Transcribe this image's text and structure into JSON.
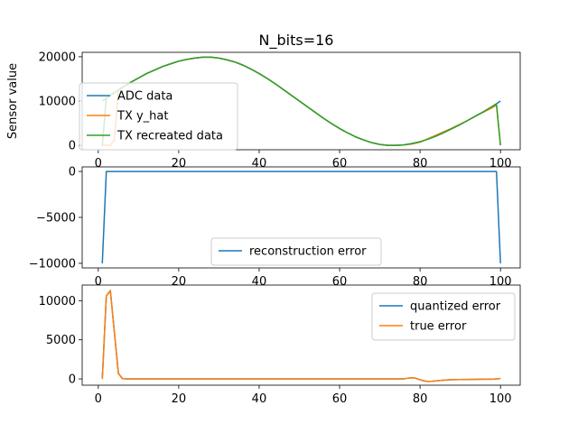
{
  "figure": {
    "title": "N_bits=16"
  },
  "chart_data": [
    {
      "type": "line",
      "title": "N_bits=16",
      "xlabel": "",
      "ylabel": "Sensor value",
      "xlim": [
        -4.0,
        104.9
      ],
      "ylim": [
        -1000,
        21000
      ],
      "xticks": [
        0,
        20,
        40,
        60,
        80,
        100
      ],
      "yticks": [
        0,
        10000,
        20000
      ],
      "ytick_labels": [
        "0",
        "10000",
        "20000"
      ],
      "legend_loc": "center-left",
      "grid": false,
      "series": [
        {
          "name": "ADC data",
          "color": "#1f77b4",
          "x": [
            1,
            2,
            3,
            4,
            5,
            6,
            7,
            8,
            9,
            10,
            12,
            14,
            16,
            18,
            20,
            22,
            24,
            26,
            28,
            30,
            32,
            34,
            36,
            38,
            40,
            42,
            44,
            46,
            48,
            50,
            52,
            54,
            56,
            58,
            60,
            62,
            64,
            66,
            68,
            70,
            72,
            74,
            76,
            78,
            80,
            82,
            84,
            86,
            88,
            90,
            92,
            94,
            96,
            98,
            100
          ],
          "y": [
            10000,
            10600,
            11300,
            11900,
            12500,
            13100,
            13600,
            14200,
            14700,
            15200,
            16200,
            17000,
            17800,
            18400,
            19000,
            19400,
            19700,
            19900,
            19900,
            19700,
            19300,
            18800,
            18100,
            17200,
            16200,
            15100,
            13900,
            12600,
            11300,
            10000,
            8700,
            7400,
            6100,
            4900,
            3800,
            2800,
            1900,
            1200,
            600,
            200,
            0,
            0,
            100,
            400,
            800,
            1400,
            2100,
            2900,
            3800,
            4700,
            5700,
            6700,
            7700,
            8800,
            10000
          ]
        },
        {
          "name": "TX y_hat",
          "color": "#ff7f0e",
          "x": [
            1,
            2,
            3,
            4,
            5,
            6,
            7,
            8,
            9,
            10,
            12,
            14,
            16,
            18,
            20,
            22,
            24,
            26,
            28,
            30,
            32,
            34,
            36,
            38,
            40,
            42,
            44,
            46,
            48,
            50,
            52,
            54,
            56,
            58,
            60,
            62,
            64,
            66,
            68,
            70,
            72,
            74,
            76,
            78,
            80,
            82,
            84,
            86,
            88,
            90,
            92,
            94,
            96,
            98,
            99,
            100
          ],
          "y": [
            0,
            0,
            0,
            1200,
            12400,
            13100,
            13600,
            14200,
            14700,
            15200,
            16200,
            17000,
            17800,
            18400,
            19000,
            19400,
            19700,
            19900,
            19900,
            19700,
            19300,
            18800,
            18100,
            17200,
            16200,
            15100,
            13900,
            12600,
            11300,
            10000,
            8700,
            7400,
            6100,
            4900,
            3800,
            2800,
            1900,
            1200,
            600,
            200,
            0,
            0,
            100,
            300,
            700,
            1500,
            2300,
            3100,
            3900,
            4800,
            5700,
            6700,
            7600,
            8500,
            9100,
            0
          ]
        },
        {
          "name": "TX recreated data",
          "color": "#2ca02c",
          "x": [
            1,
            2,
            3,
            4,
            5,
            6,
            7,
            8,
            9,
            10,
            12,
            14,
            16,
            18,
            20,
            22,
            24,
            26,
            28,
            30,
            32,
            34,
            36,
            38,
            40,
            42,
            44,
            46,
            48,
            50,
            52,
            54,
            56,
            58,
            60,
            62,
            64,
            66,
            68,
            70,
            72,
            74,
            76,
            78,
            80,
            82,
            84,
            86,
            88,
            90,
            92,
            94,
            96,
            98,
            99,
            100
          ],
          "y": [
            0,
            10600,
            11300,
            11900,
            12500,
            13100,
            13600,
            14200,
            14700,
            15200,
            16200,
            17000,
            17800,
            18400,
            19000,
            19400,
            19700,
            19900,
            19900,
            19700,
            19300,
            18800,
            18100,
            17200,
            16200,
            15100,
            13900,
            12600,
            11300,
            10000,
            8700,
            7400,
            6100,
            4900,
            3800,
            2800,
            1900,
            1200,
            600,
            200,
            0,
            0,
            100,
            400,
            800,
            1400,
            2100,
            2900,
            3800,
            4700,
            5700,
            6700,
            7700,
            8800,
            9300,
            0
          ]
        }
      ]
    },
    {
      "type": "line",
      "xlabel": "",
      "ylabel": "",
      "xlim": [
        -4.0,
        104.9
      ],
      "ylim": [
        -10500,
        500
      ],
      "xticks": [
        0,
        20,
        40,
        60,
        80,
        100
      ],
      "yticks": [
        -10000,
        -5000,
        0
      ],
      "ytick_labels": [
        "−10000",
        "−5000",
        "0"
      ],
      "legend_loc": "lower-center",
      "grid": false,
      "series": [
        {
          "name": "reconstruction error",
          "color": "#1f77b4",
          "x": [
            1,
            2,
            3,
            10,
            20,
            40,
            60,
            80,
            90,
            98,
            99,
            100
          ],
          "y": [
            -10000,
            0,
            0,
            0,
            0,
            0,
            0,
            0,
            0,
            0,
            0,
            -10000
          ]
        }
      ]
    },
    {
      "type": "line",
      "xlabel": "",
      "ylabel": "",
      "xlim": [
        -4.0,
        104.9
      ],
      "ylim": [
        -800,
        12000
      ],
      "xticks": [
        0,
        20,
        40,
        60,
        80,
        100
      ],
      "yticks": [
        0,
        5000,
        10000
      ],
      "ytick_labels": [
        "0",
        "5000",
        "10000"
      ],
      "legend_loc": "upper-right",
      "grid": false,
      "series": [
        {
          "name": "quantized error",
          "color": "#1f77b4",
          "x": [
            1,
            2,
            3,
            4,
            5,
            6,
            7,
            8,
            10,
            20,
            40,
            60,
            74,
            76,
            77,
            78,
            79,
            80,
            81,
            82,
            83,
            84,
            86,
            88,
            90,
            92,
            94,
            96,
            98,
            100
          ],
          "y": [
            0,
            10600,
            11300,
            6000,
            700,
            50,
            0,
            0,
            0,
            0,
            0,
            0,
            0,
            0,
            100,
            150,
            80,
            -100,
            -250,
            -320,
            -300,
            -250,
            -150,
            -100,
            -80,
            -60,
            -50,
            -40,
            -30,
            50
          ]
        },
        {
          "name": "true error",
          "color": "#ff7f0e",
          "x": [
            1,
            2,
            3,
            4,
            5,
            6,
            7,
            8,
            10,
            20,
            40,
            60,
            74,
            76,
            77,
            78,
            79,
            80,
            81,
            82,
            83,
            84,
            86,
            88,
            90,
            92,
            94,
            96,
            98,
            100
          ],
          "y": [
            0,
            10600,
            11300,
            6000,
            700,
            50,
            0,
            0,
            0,
            0,
            0,
            0,
            0,
            0,
            100,
            150,
            80,
            -100,
            -250,
            -320,
            -300,
            -250,
            -150,
            -100,
            -80,
            -60,
            -50,
            -40,
            -30,
            50
          ]
        }
      ]
    }
  ]
}
